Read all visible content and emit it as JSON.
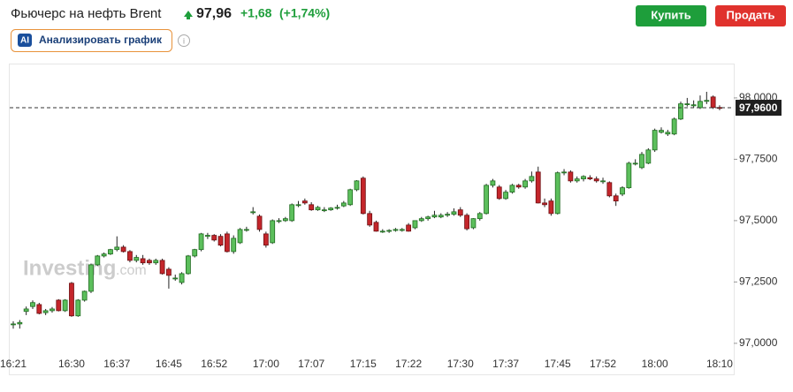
{
  "header": {
    "title": "Фьючерс на нефть Brent",
    "price": "97,96",
    "change": "+1,68",
    "change_pct": "(+1,74%)",
    "buy": "Купить",
    "sell": "Продать",
    "ai_badge": "AI",
    "analyze": "Анализировать график"
  },
  "chart_data": {
    "type": "candlestick",
    "watermark": "Investing",
    "watermark_suffix": ".com",
    "up_color": "#5cbf5c",
    "down_color": "#c4262b",
    "categories": [
      "16:21",
      "16:22",
      "16:23",
      "16:24",
      "16:25",
      "16:26",
      "16:27",
      "16:28",
      "16:29",
      "16:30",
      "16:31",
      "16:32",
      "16:33",
      "16:34",
      "16:35",
      "16:36",
      "16:37",
      "16:38",
      "16:39",
      "16:40",
      "16:41",
      "16:42",
      "16:43",
      "16:44",
      "16:45",
      "16:46",
      "16:47",
      "16:48",
      "16:49",
      "16:50",
      "16:51",
      "16:52",
      "16:53",
      "16:54",
      "16:55",
      "16:56",
      "16:57",
      "16:58",
      "16:59",
      "17:00",
      "17:01",
      "17:02",
      "17:03",
      "17:04",
      "17:05",
      "17:06",
      "17:07",
      "17:08",
      "17:09",
      "17:10",
      "17:11",
      "17:12",
      "17:13",
      "17:14",
      "17:15",
      "17:16",
      "17:17",
      "17:18",
      "17:19",
      "17:20",
      "17:21",
      "17:22",
      "17:23",
      "17:24",
      "17:25",
      "17:26",
      "17:27",
      "17:28",
      "17:29",
      "17:30",
      "17:31",
      "17:32",
      "17:33",
      "17:34",
      "17:35",
      "17:36",
      "17:37",
      "17:38",
      "17:39",
      "17:40",
      "17:41",
      "17:42",
      "17:43",
      "17:44",
      "17:45",
      "17:46",
      "17:47",
      "17:48",
      "17:49",
      "17:50",
      "17:51",
      "17:52",
      "17:53",
      "17:54",
      "17:55",
      "17:56",
      "17:57",
      "17:58",
      "17:59",
      "18:00",
      "18:01",
      "18:02",
      "18:03",
      "18:04",
      "18:05",
      "18:06",
      "18:07",
      "18:08",
      "18:09",
      "18:10"
    ],
    "open": [
      97.079,
      97.079,
      97.13,
      97.15,
      97.158,
      97.125,
      97.133,
      97.176,
      97.133,
      97.245,
      97.112,
      97.176,
      97.212,
      97.32,
      97.356,
      97.364,
      97.382,
      97.392,
      97.374,
      97.338,
      97.345,
      97.338,
      97.328,
      97.338,
      97.302,
      97.266,
      97.248,
      97.284,
      97.356,
      97.382,
      97.436,
      97.44,
      97.436,
      97.446,
      97.374,
      97.41,
      97.464,
      97.536,
      97.518,
      97.446,
      97.41,
      97.5,
      97.5,
      97.5,
      97.565,
      97.58,
      97.565,
      97.544,
      97.544,
      97.544,
      97.551,
      97.56,
      97.565,
      97.626,
      97.673,
      97.529,
      97.493,
      97.457,
      97.457,
      97.46,
      97.46,
      97.482,
      97.471,
      97.5,
      97.508,
      97.515,
      97.515,
      97.522,
      97.526,
      97.544,
      97.522,
      97.471,
      97.508,
      97.529,
      97.644,
      97.637,
      97.59,
      97.616,
      97.644,
      97.637,
      97.662,
      97.698,
      97.572,
      97.58,
      97.529,
      97.695,
      97.698,
      97.662,
      97.67,
      97.675,
      97.67,
      97.662,
      97.655,
      97.601,
      97.608,
      97.634,
      97.734,
      97.716,
      97.734,
      97.788,
      97.86,
      97.853,
      97.853,
      97.914,
      97.976,
      97.968,
      97.96,
      97.986,
      98.004,
      97.961
    ],
    "high": [
      97.09,
      97.095,
      97.15,
      97.175,
      97.165,
      97.14,
      97.148,
      97.18,
      97.18,
      97.25,
      97.18,
      97.215,
      97.325,
      97.36,
      97.37,
      97.385,
      97.436,
      97.4,
      97.38,
      97.36,
      97.36,
      97.345,
      97.345,
      97.345,
      97.31,
      97.28,
      97.29,
      97.36,
      97.385,
      97.45,
      97.45,
      97.445,
      97.445,
      97.455,
      97.44,
      97.47,
      97.475,
      97.555,
      97.525,
      97.455,
      97.505,
      97.51,
      97.515,
      97.57,
      97.58,
      97.59,
      97.575,
      97.56,
      97.555,
      97.555,
      97.565,
      97.58,
      97.63,
      97.665,
      97.68,
      97.54,
      97.5,
      97.465,
      97.465,
      97.47,
      97.47,
      97.49,
      97.5,
      97.515,
      97.52,
      97.54,
      97.53,
      97.535,
      97.55,
      97.555,
      97.53,
      97.51,
      97.535,
      97.65,
      97.67,
      97.645,
      97.625,
      97.65,
      97.65,
      97.67,
      97.7,
      97.72,
      97.59,
      97.59,
      97.7,
      97.71,
      97.705,
      97.68,
      97.685,
      97.685,
      97.68,
      97.675,
      97.66,
      97.61,
      97.64,
      97.74,
      97.75,
      97.78,
      97.795,
      97.875,
      97.88,
      97.87,
      97.92,
      97.985,
      98.0,
      97.99,
      98.01,
      98.025,
      98.01,
      97.97
    ],
    "low": [
      97.06,
      97.06,
      97.115,
      97.14,
      97.118,
      97.115,
      97.125,
      97.13,
      97.128,
      97.108,
      97.108,
      97.17,
      97.205,
      97.315,
      97.35,
      97.36,
      97.375,
      97.37,
      97.33,
      97.33,
      97.32,
      97.32,
      97.32,
      97.28,
      97.223,
      97.255,
      97.24,
      97.28,
      97.35,
      97.375,
      97.425,
      97.415,
      97.395,
      97.37,
      97.365,
      97.405,
      97.455,
      97.525,
      97.455,
      97.39,
      97.405,
      97.49,
      97.495,
      97.495,
      97.555,
      97.565,
      97.54,
      97.54,
      97.535,
      97.54,
      97.545,
      97.555,
      97.56,
      97.62,
      97.525,
      97.475,
      97.455,
      97.45,
      97.45,
      97.455,
      97.455,
      97.455,
      97.465,
      97.495,
      97.5,
      97.51,
      97.51,
      97.515,
      97.52,
      97.515,
      97.46,
      97.465,
      97.5,
      97.525,
      97.635,
      97.585,
      97.585,
      97.61,
      97.63,
      97.63,
      97.655,
      97.57,
      97.555,
      97.52,
      97.525,
      97.685,
      97.655,
      97.655,
      97.66,
      97.665,
      97.655,
      97.65,
      97.595,
      97.56,
      97.6,
      97.63,
      97.725,
      97.71,
      97.73,
      97.78,
      97.855,
      97.845,
      97.848,
      97.91,
      97.965,
      97.96,
      97.955,
      97.975,
      97.955,
      97.95
    ],
    "close": [
      97.079,
      97.085,
      97.14,
      97.166,
      97.122,
      97.133,
      97.14,
      97.133,
      97.176,
      97.112,
      97.176,
      97.212,
      97.32,
      97.356,
      97.364,
      97.382,
      97.392,
      97.374,
      97.338,
      97.35,
      97.328,
      97.328,
      97.338,
      97.284,
      97.277,
      97.266,
      97.284,
      97.356,
      97.382,
      97.446,
      97.44,
      97.421,
      97.4,
      97.374,
      97.428,
      97.464,
      97.464,
      97.536,
      97.464,
      97.4,
      97.5,
      97.5,
      97.508,
      97.565,
      97.565,
      97.572,
      97.544,
      97.554,
      97.544,
      97.551,
      97.554,
      97.572,
      97.626,
      97.662,
      97.529,
      97.482,
      97.457,
      97.457,
      97.46,
      97.464,
      97.464,
      97.457,
      97.5,
      97.508,
      97.515,
      97.522,
      97.522,
      97.526,
      97.536,
      97.522,
      97.467,
      97.508,
      97.529,
      97.644,
      97.662,
      97.59,
      97.616,
      97.644,
      97.637,
      97.662,
      97.68,
      97.572,
      97.565,
      97.529,
      97.695,
      97.698,
      97.662,
      97.67,
      97.68,
      97.67,
      97.662,
      97.662,
      97.601,
      97.58,
      97.634,
      97.734,
      97.734,
      97.77,
      97.788,
      97.868,
      97.868,
      97.86,
      97.914,
      97.976,
      97.976,
      97.972,
      97.986,
      97.99,
      97.961,
      97.96
    ],
    "ylim": [
      96.87,
      98.14
    ],
    "yticks": [
      {
        "value": 97,
        "label": "97,0000"
      },
      {
        "value": 97.25,
        "label": "97,2500"
      },
      {
        "value": 97.5,
        "label": "97,5000"
      },
      {
        "value": 97.75,
        "label": "97,7500"
      },
      {
        "value": 98,
        "label": "98,0000"
      }
    ],
    "xticks": [
      "16:21",
      "16:30",
      "16:37",
      "16:45",
      "16:52",
      "17:00",
      "17:07",
      "17:15",
      "17:22",
      "17:30",
      "17:37",
      "17:45",
      "17:52",
      "18:00",
      "18:10"
    ],
    "last_price": {
      "value": 97.96,
      "label": "97,9600"
    }
  }
}
